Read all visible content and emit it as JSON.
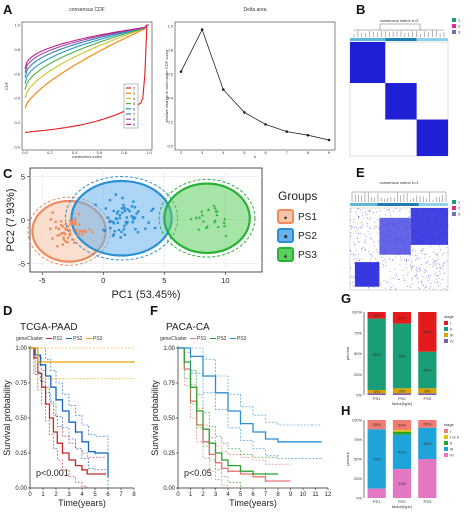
{
  "panels": {
    "a": "A",
    "b": "B",
    "c": "C",
    "d": "D",
    "e": "E",
    "f": "F",
    "g": "G",
    "h": "H"
  },
  "chart_data": [
    {
      "id": "A1",
      "type": "line",
      "title": "consensus CDF",
      "xlabel": "consensus index",
      "ylabel": "CDF",
      "xlim": [
        0,
        1
      ],
      "ylim": [
        0,
        1
      ],
      "x_ticks": [
        "0.0",
        "0.2",
        "0.4",
        "0.6",
        "0.8",
        "1.0"
      ],
      "y_ticks": [
        "0.0",
        "0.2",
        "0.4",
        "0.6",
        "0.8",
        "1.0"
      ],
      "legend": [
        "2",
        "3",
        "4",
        "5",
        "6",
        "7",
        "8",
        "9"
      ],
      "colors": [
        "#e41a1c",
        "#ff7f00",
        "#c6c627",
        "#4daf4a",
        "#1f9bbf",
        "#377eb8",
        "#984ea3",
        "#c51b8a"
      ],
      "start_values": [
        0.2,
        0.32,
        0.4,
        0.47,
        0.52,
        0.57,
        0.61,
        0.64
      ],
      "shape_power": [
        1.0,
        0.7,
        0.6,
        0.55,
        0.5,
        0.47,
        0.45,
        0.43
      ]
    },
    {
      "id": "A2",
      "type": "line",
      "title": "Delta area",
      "xlabel": "k",
      "ylabel": "relative change in area under CDF curve",
      "x": [
        2,
        3,
        4,
        5,
        6,
        7,
        8,
        9
      ],
      "y": [
        0.62,
        0.97,
        0.47,
        0.28,
        0.18,
        0.12,
        0.09,
        0.05
      ],
      "xlim": [
        2,
        9
      ],
      "ylim": [
        0,
        1
      ],
      "x_ticks": [
        "2",
        "3",
        "4",
        "5",
        "6",
        "7",
        "8",
        "9"
      ],
      "y_ticks": [
        "0.0",
        "0.2",
        "0.4",
        "0.6",
        "0.8",
        "1.0"
      ]
    },
    {
      "id": "B",
      "type": "heatmap",
      "title": "consensus matrix k=3",
      "legend": [
        "1",
        "2",
        "3"
      ],
      "legend_colors": [
        "#1b9e77",
        "#e7298a",
        "#7570b3"
      ],
      "blocks": [
        0.36,
        0.32,
        0.32
      ]
    },
    {
      "id": "C",
      "type": "scatter",
      "xlabel": "PC1 (53.45%)",
      "ylabel": "PC2 (7.93%)",
      "xlim": [
        -6,
        13
      ],
      "ylim": [
        -6,
        6
      ],
      "x_ticks": [
        "-5",
        "0",
        "5",
        "10"
      ],
      "x_tick_values": [
        -5,
        0,
        5,
        10
      ],
      "y_ticks": [
        "-5",
        "0",
        "5"
      ],
      "y_tick_values": [
        -5,
        0,
        5
      ],
      "legend_title": "Groups",
      "series": [
        {
          "name": "PS1",
          "color": "#f08a5d",
          "fill": "#f6c5a8",
          "marker": "●",
          "center": [
            -2.8,
            -1.3
          ],
          "radius": [
            3.0,
            3.5
          ]
        },
        {
          "name": "PS2",
          "color": "#2b8fd6",
          "fill": "#69b3ec",
          "marker": "■",
          "center": [
            1.5,
            0.2
          ],
          "radius": [
            4.1,
            4.3
          ]
        },
        {
          "name": "PS3",
          "color": "#27b334",
          "fill": "#5cd05f",
          "marker": "▲",
          "center": [
            8.5,
            0.2
          ],
          "radius": [
            3.5,
            4.0
          ]
        }
      ]
    },
    {
      "id": "D",
      "type": "line",
      "title": "TCGA-PAAD",
      "xlabel": "Time(years)",
      "ylabel": "Survival probability",
      "legend_title": "geneCluster",
      "legend": [
        "PS1",
        "PS2",
        "PS3"
      ],
      "colors": [
        "#c62828",
        "#1565c0",
        "#e6a100"
      ],
      "xlim": [
        0,
        8
      ],
      "ylim": [
        0,
        1
      ],
      "x_ticks": [
        "0",
        "1",
        "2",
        "3",
        "4",
        "5",
        "6",
        "7",
        "8"
      ],
      "y_ticks": [
        "0.00",
        "0.25",
        "0.50",
        "0.75",
        "1.00"
      ],
      "p_value": "p<0.001",
      "series": [
        {
          "name": "PS1",
          "x": [
            0,
            0.3,
            0.6,
            0.9,
            1.2,
            1.5,
            1.8,
            2.1,
            2.5,
            3.0,
            3.5,
            4.0,
            4.4,
            5.0,
            5.8
          ],
          "y": [
            1,
            0.93,
            0.82,
            0.72,
            0.6,
            0.5,
            0.4,
            0.32,
            0.25,
            0.2,
            0.16,
            0.13,
            0.1,
            0.1,
            0.1
          ]
        },
        {
          "name": "PS2",
          "x": [
            0,
            0.4,
            0.8,
            1.2,
            1.6,
            2.0,
            2.5,
            3.0,
            3.5,
            4.0,
            4.5,
            5.0,
            5.5,
            6.0
          ],
          "y": [
            1,
            0.95,
            0.88,
            0.8,
            0.72,
            0.63,
            0.55,
            0.47,
            0.4,
            0.33,
            0.26,
            0.25,
            0.25,
            0.08
          ]
        },
        {
          "name": "PS3",
          "x": [
            0,
            0.6,
            8
          ],
          "y": [
            1,
            0.9,
            0.9
          ]
        }
      ]
    },
    {
      "id": "F",
      "type": "line",
      "title": "PACA-CA",
      "xlabel": "Time(years)",
      "ylabel": "Survival probability",
      "legend_title": "geneCluster",
      "legend": [
        "PS1",
        "PS2",
        "PS3"
      ],
      "colors": [
        "#e57373",
        "#2ca02c",
        "#2b8fd6"
      ],
      "xlim": [
        0,
        12
      ],
      "ylim": [
        0,
        1
      ],
      "x_ticks": [
        "0",
        "1",
        "2",
        "3",
        "4",
        "5",
        "6",
        "7",
        "8",
        "9",
        "10",
        "11",
        "12"
      ],
      "y_ticks": [
        "0.00",
        "0.25",
        "0.50",
        "0.75",
        "1.00"
      ],
      "p_value": "p<0.05",
      "series": [
        {
          "name": "PS1",
          "x": [
            0,
            0.5,
            1,
            1.5,
            2,
            2.5,
            3,
            3.5,
            4,
            5,
            6,
            7,
            8,
            9
          ],
          "y": [
            1,
            0.85,
            0.62,
            0.45,
            0.33,
            0.24,
            0.18,
            0.14,
            0.12,
            0.1,
            0.08,
            0.05,
            0.05,
            0.05
          ]
        },
        {
          "name": "PS2",
          "x": [
            0,
            0.5,
            1,
            1.5,
            2,
            2.5,
            3,
            3.5,
            4,
            5,
            6,
            7,
            8
          ],
          "y": [
            1,
            0.9,
            0.72,
            0.55,
            0.42,
            0.32,
            0.25,
            0.2,
            0.16,
            0.12,
            0.1,
            0.1,
            0.1
          ]
        },
        {
          "name": "PS3",
          "x": [
            0,
            1,
            2,
            3,
            4,
            5,
            6,
            7,
            8,
            9,
            11.5
          ],
          "y": [
            1,
            0.94,
            0.8,
            0.68,
            0.55,
            0.46,
            0.4,
            0.35,
            0.33,
            0.33,
            0.33
          ]
        }
      ]
    },
    {
      "id": "G",
      "type": "bar",
      "xlabel": "factor(type)",
      "ylabel": "percent",
      "categories": [
        "PS1",
        "PS2",
        "PS3"
      ],
      "y_ticks": [
        "0%",
        "25%",
        "50%",
        "75%",
        "100%"
      ],
      "legend_title": "stage",
      "series": [
        {
          "name": "I",
          "color": "#e41a1c",
          "values": [
            8,
            14,
            48
          ]
        },
        {
          "name": "II",
          "color": "#1a9e77",
          "values": [
            86,
            78,
            44
          ]
        },
        {
          "name": "III",
          "color": "#d9a300",
          "values": [
            4,
            6,
            6
          ]
        },
        {
          "name": "IV",
          "color": "#7b5ea7",
          "values": [
            2,
            2,
            2
          ]
        }
      ],
      "labels": [
        [
          "8%",
          "86%",
          "4%",
          ""
        ],
        [
          "14%",
          "78%",
          "6%",
          ""
        ],
        [
          "48%",
          "44%",
          "6%",
          ""
        ]
      ]
    },
    {
      "id": "H",
      "type": "bar",
      "xlabel": "factor(type)",
      "ylabel": "percent",
      "categories": [
        "PS1",
        "PS2",
        "PS3"
      ],
      "y_ticks": [
        "0%",
        "25%",
        "50%",
        "75%",
        "100%"
      ],
      "legend_title": "stage",
      "series": [
        {
          "name": "I",
          "color": "#f07b72",
          "values": [
            12,
            13,
            10
          ]
        },
        {
          "name": "I or II",
          "color": "#e6c700",
          "values": [
            0,
            2,
            0
          ]
        },
        {
          "name": "II",
          "color": "#2ca02c",
          "values": [
            0,
            4,
            0
          ]
        },
        {
          "name": "III",
          "color": "#1fa4d9",
          "values": [
            76,
            44,
            40
          ]
        },
        {
          "name": "IV",
          "color": "#e377c2",
          "values": [
            12,
            37,
            50
          ]
        }
      ],
      "labels": [
        [
          "25%",
          "",
          "",
          "75%",
          ""
        ],
        [
          "34%",
          "7%",
          "",
          "41%",
          "13%"
        ],
        [
          "52%",
          "",
          "",
          "48%",
          ""
        ]
      ]
    }
  ]
}
